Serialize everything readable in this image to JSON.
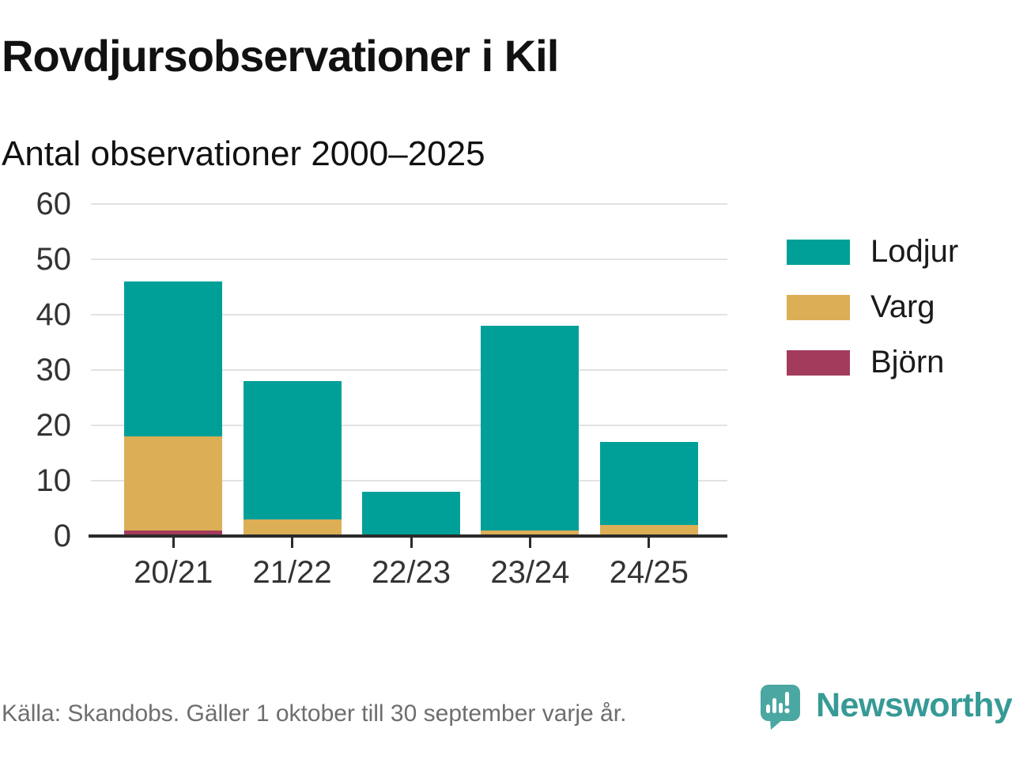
{
  "title": "Rovdjursobservationer i Kil",
  "subtitle": "Antal observationer 2000–2025",
  "source": "Källa: Skandobs. Gäller 1 oktober till 30 september varje år.",
  "logo": {
    "text": "Newsworthy",
    "icon": "newsworthy-speech-bubble-bar-chart-icon"
  },
  "colors": {
    "lodjur": "#00a099",
    "varg": "#dcae56",
    "bjorn": "#a33c5c",
    "grid": "#e2e2e2",
    "axis_line": "#2b2b2b",
    "tick_label": "#333333",
    "title": "#111111",
    "source_text": "#6e6e6e",
    "logo_text": "#369a95",
    "logo_icon": "#4ba7a2"
  },
  "chart_data": {
    "type": "bar",
    "stacked": true,
    "title": "Rovdjursobservationer i Kil",
    "subtitle": "Antal observationer 2000–2025",
    "categories": [
      "20/21",
      "21/22",
      "22/23",
      "23/24",
      "24/25"
    ],
    "series": [
      {
        "name": "Lodjur",
        "color": "#00a099",
        "values": [
          28,
          25,
          8,
          37,
          15
        ]
      },
      {
        "name": "Varg",
        "color": "#dcae56",
        "values": [
          17,
          3,
          0,
          1,
          2
        ]
      },
      {
        "name": "Björn",
        "color": "#a33c5c",
        "values": [
          1,
          0,
          0,
          0,
          0
        ]
      }
    ],
    "stack_order_bottom_to_top": [
      "Björn",
      "Varg",
      "Lodjur"
    ],
    "totals": [
      46,
      28,
      8,
      38,
      17
    ],
    "xlabel": "",
    "ylabel": "",
    "ylim": [
      0,
      60
    ],
    "yticks": [
      0,
      10,
      20,
      30,
      40,
      50,
      60
    ],
    "grid": true,
    "legend_position": "right",
    "legend_order": [
      "Lodjur",
      "Varg",
      "Björn"
    ]
  }
}
